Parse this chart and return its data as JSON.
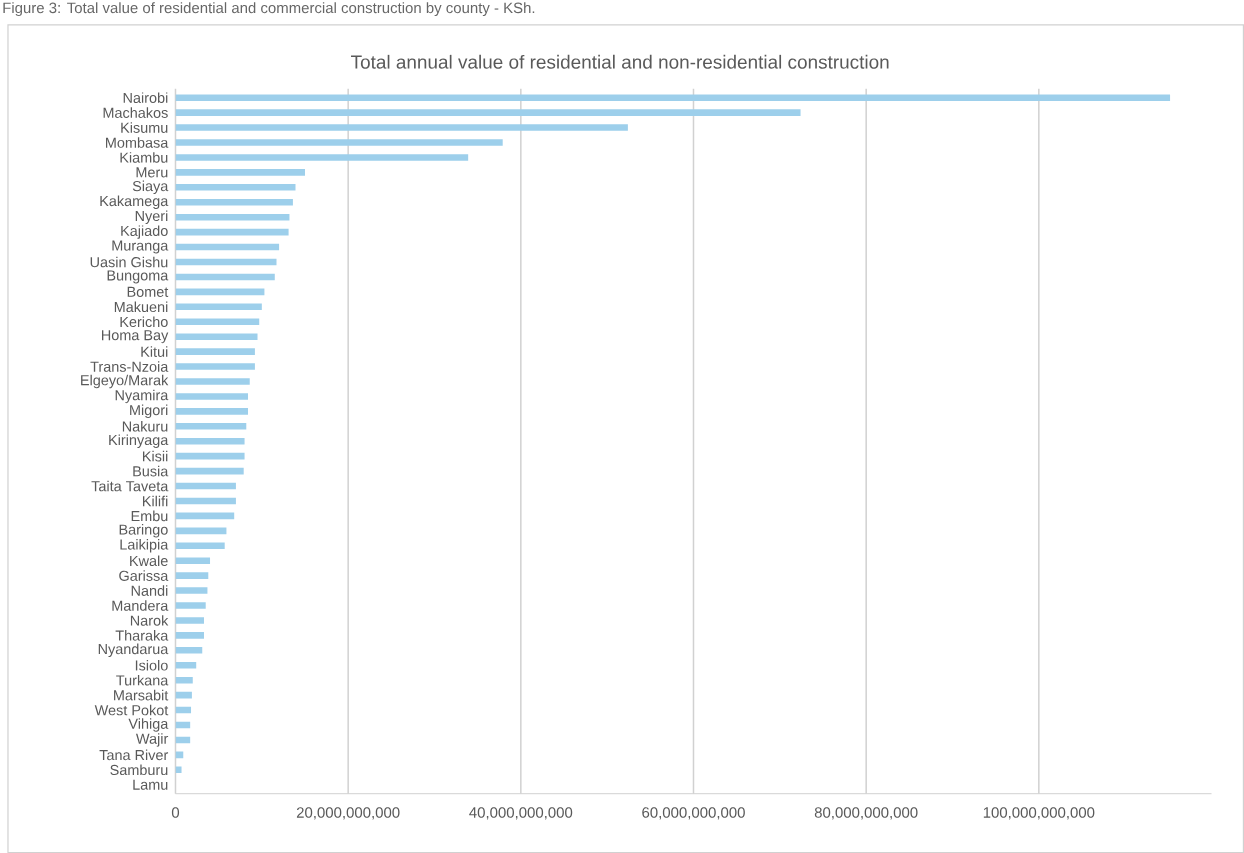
{
  "chart_data": {
    "type": "bar",
    "orientation": "horizontal",
    "title": "Total annual value of residential and non-residential construction",
    "annotations": [
      "Figure 3: Total value of residential and commercial construction by county - KSh."
    ],
    "categories": [
      "Nairobi",
      "Machakos",
      "Kisumu",
      "Mombasa",
      "Kiambu",
      "Meru",
      "Siaya",
      "Kakamega",
      "Nyeri",
      "Kajiado",
      "Muranga",
      "Uasin Gishu",
      "Bungoma",
      "Bomet",
      "Makueni",
      "Kericho",
      "Homa Bay",
      "Kitui",
      "Trans-Nzoia",
      "Elgeyo/Marak",
      "Nyamira",
      "Migori",
      "Nakuru",
      "Kirinyaga",
      "Kisii",
      "Busia",
      "Taita Taveta",
      "Kilifi",
      "Embu",
      "Baringo",
      "Laikipia",
      "Kwale",
      "Garissa",
      "Nandi",
      "Mandera",
      "Narok",
      "Tharaka",
      "Nyandarua",
      "Isiolo",
      "Turkana",
      "Marsabit",
      "West Pokot",
      "Vihiga",
      "Wajir",
      "Tana River",
      "Samburu",
      "Lamu"
    ],
    "values": [
      115200000000,
      72400000000,
      52400000000,
      37900000000,
      33900000000,
      15000000000,
      13900000000,
      13600000000,
      13200000000,
      13100000000,
      12000000000,
      11700000000,
      11500000000,
      10300000000,
      10000000000,
      9700000000,
      9500000000,
      9200000000,
      9200000000,
      8600000000,
      8400000000,
      8400000000,
      8200000000,
      8000000000,
      8000000000,
      7900000000,
      7000000000,
      7000000000,
      6800000000,
      5900000000,
      5700000000,
      4000000000,
      3800000000,
      3700000000,
      3500000000,
      3300000000,
      3300000000,
      3100000000,
      2400000000,
      2000000000,
      1900000000,
      1800000000,
      1700000000,
      1700000000,
      900000000,
      700000000,
      0
    ],
    "color": "#9dcfeb",
    "xlim": [
      0,
      120000000000
    ],
    "xticks": [
      0,
      {
        "value": 20000000000,
        "label": "20,000,000,000"
      },
      {
        "value": 40000000000,
        "label": "40,000,000,000"
      },
      {
        "value": 60000000000,
        "label": "60,000,000,000"
      },
      {
        "value": 80000000000,
        "label": "80,000,000,000"
      },
      {
        "value": 100000000000,
        "label": "100,000,000,000"
      }
    ],
    "grid": "x"
  }
}
